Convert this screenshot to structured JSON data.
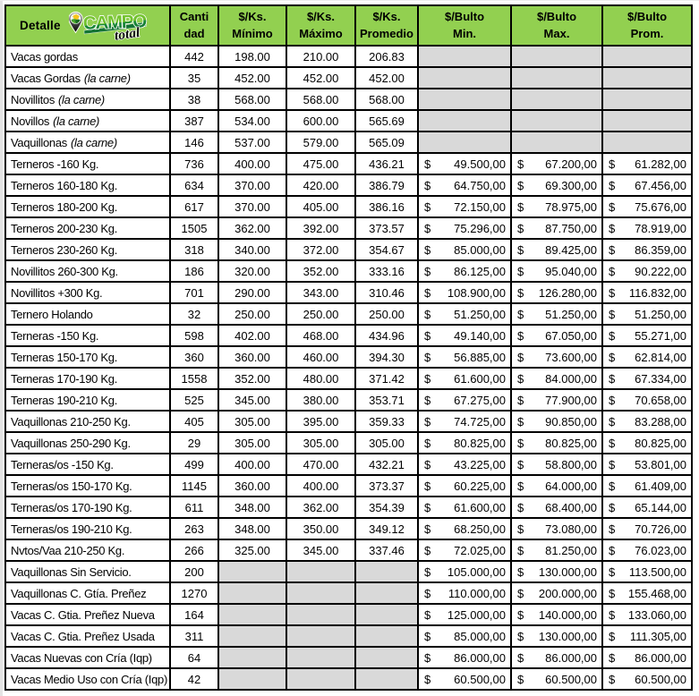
{
  "page": {
    "background": "#ffffff"
  },
  "colors": {
    "header_bg": "#92d050",
    "empty_cell_bg": "#d9d9d9",
    "border": "#000000",
    "text": "#000000",
    "logo_green_light": "#6fbe2e",
    "logo_green_dark": "#17813a",
    "logo_black": "#111111"
  },
  "table": {
    "header": {
      "detalle_label": "Detalle",
      "logo": {
        "brand_top": "CAMPO",
        "brand_bottom": "total",
        "pin_icon": "map-pin-with-field-and-sun"
      },
      "columns": [
        {
          "id": "cantidad",
          "lines": [
            "Canti",
            "dad"
          ]
        },
        {
          "id": "ks_minimo",
          "lines": [
            "$/Ks.",
            "Mínimo"
          ]
        },
        {
          "id": "ks_maximo",
          "lines": [
            "$/Ks.",
            "Máximo"
          ]
        },
        {
          "id": "ks_promedio",
          "lines": [
            "$/Ks.",
            "Promedio"
          ]
        },
        {
          "id": "bulto_min",
          "lines": [
            "$/Bulto",
            "Min."
          ]
        },
        {
          "id": "bulto_max",
          "lines": [
            "$/Bulto",
            "Max."
          ]
        },
        {
          "id": "bulto_prom",
          "lines": [
            "$/Bulto",
            "Prom."
          ]
        }
      ]
    },
    "currency_symbol": "$",
    "rows": [
      {
        "detalle": "Vacas gordas",
        "suffix": "",
        "cantidad": "442",
        "ks_min": "198.00",
        "ks_max": "210.00",
        "ks_prom": "206.83",
        "bulto_min": "",
        "bulto_max": "",
        "bulto_prom": ""
      },
      {
        "detalle": "Vacas Gordas",
        "suffix": "(la carne)",
        "cantidad": "35",
        "ks_min": "452.00",
        "ks_max": "452.00",
        "ks_prom": "452.00",
        "bulto_min": "",
        "bulto_max": "",
        "bulto_prom": ""
      },
      {
        "detalle": "Novillitos",
        "suffix": "(la carne)",
        "cantidad": "38",
        "ks_min": "568.00",
        "ks_max": "568.00",
        "ks_prom": "568.00",
        "bulto_min": "",
        "bulto_max": "",
        "bulto_prom": ""
      },
      {
        "detalle": "Novillos",
        "suffix": "(la carne)",
        "cantidad": "387",
        "ks_min": "534.00",
        "ks_max": "600.00",
        "ks_prom": "565.69",
        "bulto_min": "",
        "bulto_max": "",
        "bulto_prom": ""
      },
      {
        "detalle": "Vaquillonas",
        "suffix": "(la carne)",
        "cantidad": "146",
        "ks_min": "537.00",
        "ks_max": "579.00",
        "ks_prom": "565.09",
        "bulto_min": "",
        "bulto_max": "",
        "bulto_prom": ""
      },
      {
        "detalle": "Terneros -160 Kg.",
        "suffix": "",
        "cantidad": "736",
        "ks_min": "400.00",
        "ks_max": "475.00",
        "ks_prom": "436.21",
        "bulto_min": "49.500,00",
        "bulto_max": "67.200,00",
        "bulto_prom": "61.282,00"
      },
      {
        "detalle": "Terneros 160-180 Kg.",
        "suffix": "",
        "cantidad": "634",
        "ks_min": "370.00",
        "ks_max": "420.00",
        "ks_prom": "386.79",
        "bulto_min": "64.750,00",
        "bulto_max": "69.300,00",
        "bulto_prom": "67.456,00"
      },
      {
        "detalle": "Terneros 180-200 Kg.",
        "suffix": "",
        "cantidad": "617",
        "ks_min": "370.00",
        "ks_max": "405.00",
        "ks_prom": "386.16",
        "bulto_min": "72.150,00",
        "bulto_max": "78.975,00",
        "bulto_prom": "75.676,00"
      },
      {
        "detalle": "Terneros 200-230 Kg.",
        "suffix": "",
        "cantidad": "1505",
        "ks_min": "362.00",
        "ks_max": "392.00",
        "ks_prom": "373.57",
        "bulto_min": "75.296,00",
        "bulto_max": "87.750,00",
        "bulto_prom": "78.919,00"
      },
      {
        "detalle": "Terneros 230-260 Kg.",
        "suffix": "",
        "cantidad": "318",
        "ks_min": "340.00",
        "ks_max": "372.00",
        "ks_prom": "354.67",
        "bulto_min": "85.000,00",
        "bulto_max": "89.425,00",
        "bulto_prom": "86.359,00"
      },
      {
        "detalle": "Novillitos 260-300 Kg.",
        "suffix": "",
        "cantidad": "186",
        "ks_min": "320.00",
        "ks_max": "352.00",
        "ks_prom": "333.16",
        "bulto_min": "86.125,00",
        "bulto_max": "95.040,00",
        "bulto_prom": "90.222,00"
      },
      {
        "detalle": "Novillitos +300 Kg.",
        "suffix": "",
        "cantidad": "701",
        "ks_min": "290.00",
        "ks_max": "343.00",
        "ks_prom": "310.46",
        "bulto_min": "108.900,00",
        "bulto_max": "126.280,00",
        "bulto_prom": "116.832,00"
      },
      {
        "detalle": "Ternero Holando",
        "suffix": "",
        "cantidad": "32",
        "ks_min": "250.00",
        "ks_max": "250.00",
        "ks_prom": "250.00",
        "bulto_min": "51.250,00",
        "bulto_max": "51.250,00",
        "bulto_prom": "51.250,00"
      },
      {
        "detalle": "Terneras -150 Kg.",
        "suffix": "",
        "cantidad": "598",
        "ks_min": "402.00",
        "ks_max": "468.00",
        "ks_prom": "434.96",
        "bulto_min": "49.140,00",
        "bulto_max": "67.050,00",
        "bulto_prom": "55.271,00"
      },
      {
        "detalle": "Terneras 150-170 Kg.",
        "suffix": "",
        "cantidad": "360",
        "ks_min": "360.00",
        "ks_max": "460.00",
        "ks_prom": "394.30",
        "bulto_min": "56.885,00",
        "bulto_max": "73.600,00",
        "bulto_prom": "62.814,00"
      },
      {
        "detalle": "Terneras 170-190 Kg.",
        "suffix": "",
        "cantidad": "1558",
        "ks_min": "352.00",
        "ks_max": "480.00",
        "ks_prom": "371.42",
        "bulto_min": "61.600,00",
        "bulto_max": "84.000,00",
        "bulto_prom": "67.334,00"
      },
      {
        "detalle": "Terneras 190-210 Kg.",
        "suffix": "",
        "cantidad": "525",
        "ks_min": "345.00",
        "ks_max": "380.00",
        "ks_prom": "353.71",
        "bulto_min": "67.275,00",
        "bulto_max": "77.900,00",
        "bulto_prom": "70.658,00"
      },
      {
        "detalle": "Vaquillonas 210-250 Kg.",
        "suffix": "",
        "cantidad": "405",
        "ks_min": "305.00",
        "ks_max": "395.00",
        "ks_prom": "359.33",
        "bulto_min": "74.725,00",
        "bulto_max": "90.850,00",
        "bulto_prom": "83.288,00"
      },
      {
        "detalle": "Vaquillonas 250-290 Kg.",
        "suffix": "",
        "cantidad": "29",
        "ks_min": "305.00",
        "ks_max": "305.00",
        "ks_prom": "305.00",
        "bulto_min": "80.825,00",
        "bulto_max": "80.825,00",
        "bulto_prom": "80.825,00"
      },
      {
        "detalle": "Terneras/os -150 Kg.",
        "suffix": "",
        "cantidad": "499",
        "ks_min": "400.00",
        "ks_max": "470.00",
        "ks_prom": "432.21",
        "bulto_min": "43.225,00",
        "bulto_max": "58.800,00",
        "bulto_prom": "53.801,00"
      },
      {
        "detalle": "Terneras/os 150-170 Kg.",
        "suffix": "",
        "cantidad": "1145",
        "ks_min": "360.00",
        "ks_max": "400.00",
        "ks_prom": "373.37",
        "bulto_min": "60.225,00",
        "bulto_max": "64.000,00",
        "bulto_prom": "61.409,00"
      },
      {
        "detalle": "Terneras/os 170-190 Kg.",
        "suffix": "",
        "cantidad": "611",
        "ks_min": "348.00",
        "ks_max": "362.00",
        "ks_prom": "354.39",
        "bulto_min": "61.600,00",
        "bulto_max": "68.400,00",
        "bulto_prom": "65.144,00"
      },
      {
        "detalle": "Terneras/os 190-210 Kg.",
        "suffix": "",
        "cantidad": "263",
        "ks_min": "348.00",
        "ks_max": "350.00",
        "ks_prom": "349.12",
        "bulto_min": "68.250,00",
        "bulto_max": "73.080,00",
        "bulto_prom": "70.726,00"
      },
      {
        "detalle": "Nvtos/Vaa 210-250 Kg.",
        "suffix": "",
        "cantidad": "266",
        "ks_min": "325.00",
        "ks_max": "345.00",
        "ks_prom": "337.46",
        "bulto_min": "72.025,00",
        "bulto_max": "81.250,00",
        "bulto_prom": "76.023,00"
      },
      {
        "detalle": "Vaquillonas Sin Servicio.",
        "suffix": "",
        "cantidad": "200",
        "ks_min": "",
        "ks_max": "",
        "ks_prom": "",
        "bulto_min": "105.000,00",
        "bulto_max": "130.000,00",
        "bulto_prom": "113.500,00"
      },
      {
        "detalle": "Vaquillonas C. Gtía. Preñez",
        "suffix": "",
        "cantidad": "1270",
        "ks_min": "",
        "ks_max": "",
        "ks_prom": "",
        "bulto_min": "110.000,00",
        "bulto_max": "200.000,00",
        "bulto_prom": "155.468,00"
      },
      {
        "detalle": "Vacas C. Gtia. Preñez Nueva",
        "suffix": "",
        "cantidad": "164",
        "ks_min": "",
        "ks_max": "",
        "ks_prom": "",
        "bulto_min": "125.000,00",
        "bulto_max": "140.000,00",
        "bulto_prom": "133.060,00"
      },
      {
        "detalle": "Vacas C. Gtia. Preñez Usada",
        "suffix": "",
        "cantidad": "311",
        "ks_min": "",
        "ks_max": "",
        "ks_prom": "",
        "bulto_min": "85.000,00",
        "bulto_max": "130.000,00",
        "bulto_prom": "111.305,00"
      },
      {
        "detalle": "Vacas Nuevas con Cría (Iqp)",
        "suffix": "",
        "cantidad": "64",
        "ks_min": "",
        "ks_max": "",
        "ks_prom": "",
        "bulto_min": "86.000,00",
        "bulto_max": "86.000,00",
        "bulto_prom": "86.000,00"
      },
      {
        "detalle": "Vacas Medio Uso con Cría (Iqp)",
        "suffix": "",
        "cantidad": "42",
        "ks_min": "",
        "ks_max": "",
        "ks_prom": "",
        "bulto_min": "60.500,00",
        "bulto_max": "60.500,00",
        "bulto_prom": "60.500,00"
      }
    ]
  },
  "chart_data": {
    "type": "table",
    "title": "Campo Total - precios de hacienda",
    "columns": [
      "Detalle",
      "Cantidad",
      "$/Ks. Mínimo",
      "$/Ks. Máximo",
      "$/Ks. Promedio",
      "$/Bulto Min.",
      "$/Bulto Max.",
      "$/Bulto Prom."
    ],
    "rows": [
      [
        "Vacas gordas",
        442,
        198.0,
        210.0,
        206.83,
        null,
        null,
        null
      ],
      [
        "Vacas Gordas (la carne)",
        35,
        452.0,
        452.0,
        452.0,
        null,
        null,
        null
      ],
      [
        "Novillitos (la carne)",
        38,
        568.0,
        568.0,
        568.0,
        null,
        null,
        null
      ],
      [
        "Novillos (la carne)",
        387,
        534.0,
        600.0,
        565.69,
        null,
        null,
        null
      ],
      [
        "Vaquillonas (la carne)",
        146,
        537.0,
        579.0,
        565.09,
        null,
        null,
        null
      ],
      [
        "Terneros -160 Kg.",
        736,
        400.0,
        475.0,
        436.21,
        49500.0,
        67200.0,
        61282.0
      ],
      [
        "Terneros 160-180 Kg.",
        634,
        370.0,
        420.0,
        386.79,
        64750.0,
        69300.0,
        67456.0
      ],
      [
        "Terneros 180-200 Kg.",
        617,
        370.0,
        405.0,
        386.16,
        72150.0,
        78975.0,
        75676.0
      ],
      [
        "Terneros 200-230 Kg.",
        1505,
        362.0,
        392.0,
        373.57,
        75296.0,
        87750.0,
        78919.0
      ],
      [
        "Terneros 230-260 Kg.",
        318,
        340.0,
        372.0,
        354.67,
        85000.0,
        89425.0,
        86359.0
      ],
      [
        "Novillitos 260-300 Kg.",
        186,
        320.0,
        352.0,
        333.16,
        86125.0,
        95040.0,
        90222.0
      ],
      [
        "Novillitos +300 Kg.",
        701,
        290.0,
        343.0,
        310.46,
        108900.0,
        126280.0,
        116832.0
      ],
      [
        "Ternero Holando",
        32,
        250.0,
        250.0,
        250.0,
        51250.0,
        51250.0,
        51250.0
      ],
      [
        "Terneras -150 Kg.",
        598,
        402.0,
        468.0,
        434.96,
        49140.0,
        67050.0,
        55271.0
      ],
      [
        "Terneras 150-170 Kg.",
        360,
        360.0,
        460.0,
        394.3,
        56885.0,
        73600.0,
        62814.0
      ],
      [
        "Terneras 170-190 Kg.",
        1558,
        352.0,
        480.0,
        371.42,
        61600.0,
        84000.0,
        67334.0
      ],
      [
        "Terneras 190-210 Kg.",
        525,
        345.0,
        380.0,
        353.71,
        67275.0,
        77900.0,
        70658.0
      ],
      [
        "Vaquillonas 210-250 Kg.",
        405,
        305.0,
        395.0,
        359.33,
        74725.0,
        90850.0,
        83288.0
      ],
      [
        "Vaquillonas 250-290 Kg.",
        29,
        305.0,
        305.0,
        305.0,
        80825.0,
        80825.0,
        80825.0
      ],
      [
        "Terneras/os -150 Kg.",
        499,
        400.0,
        470.0,
        432.21,
        43225.0,
        58800.0,
        53801.0
      ],
      [
        "Terneras/os 150-170 Kg.",
        1145,
        360.0,
        400.0,
        373.37,
        60225.0,
        64000.0,
        61409.0
      ],
      [
        "Terneras/os 170-190 Kg.",
        611,
        348.0,
        362.0,
        354.39,
        61600.0,
        68400.0,
        65144.0
      ],
      [
        "Terneras/os 190-210 Kg.",
        263,
        348.0,
        350.0,
        349.12,
        68250.0,
        73080.0,
        70726.0
      ],
      [
        "Nvtos/Vaa 210-250 Kg.",
        266,
        325.0,
        345.0,
        337.46,
        72025.0,
        81250.0,
        76023.0
      ],
      [
        "Vaquillonas Sin Servicio.",
        200,
        null,
        null,
        null,
        105000.0,
        130000.0,
        113500.0
      ],
      [
        "Vaquillonas C. Gtía. Preñez",
        1270,
        null,
        null,
        null,
        110000.0,
        200000.0,
        155468.0
      ],
      [
        "Vacas C. Gtia. Preñez Nueva",
        164,
        null,
        null,
        null,
        125000.0,
        140000.0,
        133060.0
      ],
      [
        "Vacas C. Gtia. Preñez Usada",
        311,
        null,
        null,
        null,
        85000.0,
        130000.0,
        111305.0
      ],
      [
        "Vacas Nuevas con Cría (Iqp)",
        64,
        null,
        null,
        null,
        86000.0,
        86000.0,
        86000.0
      ],
      [
        "Vacas Medio Uso con Cría (Iqp)",
        42,
        null,
        null,
        null,
        60500.0,
        60500.0,
        60500.0
      ]
    ]
  }
}
